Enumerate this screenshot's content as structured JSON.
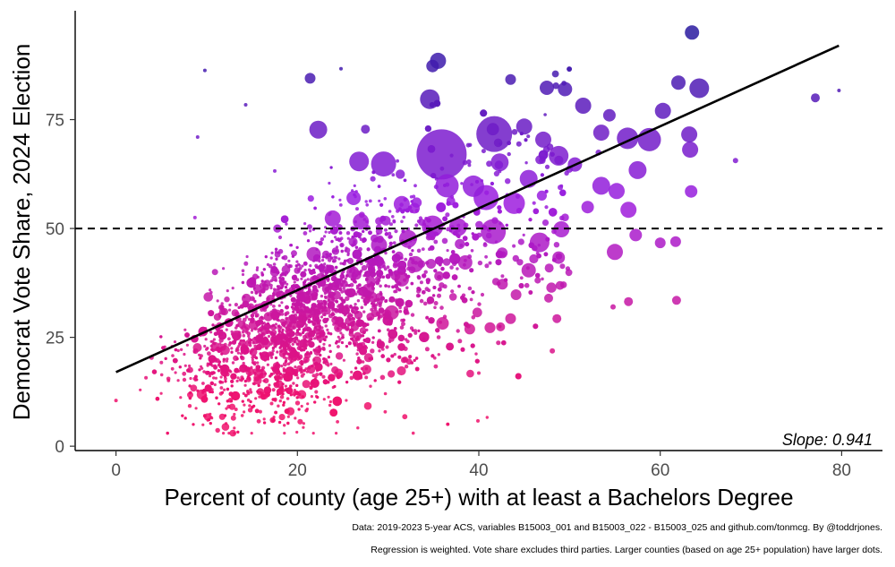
{
  "chart_data": {
    "type": "scatter",
    "title": "",
    "xlabel": "Percent of county (age 25+) with at least a Bachelors Degree",
    "ylabel": "Democrat Vote Share, 2024 Election",
    "xlim": [
      -4.5,
      84.5
    ],
    "ylim": [
      -1,
      100
    ],
    "x_ticks": [
      0,
      20,
      40,
      60,
      80
    ],
    "y_ticks": [
      0,
      25,
      50,
      75
    ],
    "grid": false,
    "reference_line": {
      "type": "horizontal",
      "y": 50,
      "style": "dashed"
    },
    "regression_line": {
      "x": [
        0,
        79.7
      ],
      "y": [
        17,
        92
      ],
      "slope_label": "Slope: 0.941"
    },
    "color_scale": {
      "low": "#f0106b",
      "mid": "#9b1de0",
      "high": "#2a1aa0"
    },
    "point_cloud_description_free_points": {
      "count": 3100,
      "note_values": []
    },
    "highlighted_points": [
      {
        "x": 63.5,
        "y": 95.0,
        "size": 8
      },
      {
        "x": 35.5,
        "y": 88.5,
        "size": 9
      },
      {
        "x": 34.9,
        "y": 87.3,
        "size": 7
      },
      {
        "x": 21.4,
        "y": 84.5,
        "size": 6
      },
      {
        "x": 9.8,
        "y": 86.3,
        "size": 2
      },
      {
        "x": 24.8,
        "y": 86.7,
        "size": 2
      },
      {
        "x": 43.5,
        "y": 84.2,
        "size": 6
      },
      {
        "x": 47.5,
        "y": 82.3,
        "size": 8
      },
      {
        "x": 49.5,
        "y": 82.0,
        "size": 8
      },
      {
        "x": 62.0,
        "y": 83.5,
        "size": 8
      },
      {
        "x": 64.3,
        "y": 82.2,
        "size": 11
      },
      {
        "x": 34.6,
        "y": 79.7,
        "size": 11
      },
      {
        "x": 77.1,
        "y": 80.0,
        "size": 5
      },
      {
        "x": 79.7,
        "y": 81.7,
        "size": 2
      },
      {
        "x": 51.5,
        "y": 78.2,
        "size": 9
      },
      {
        "x": 54.4,
        "y": 76.0,
        "size": 7
      },
      {
        "x": 60.3,
        "y": 77.0,
        "size": 9
      },
      {
        "x": 41.7,
        "y": 71.7,
        "size": 20
      },
      {
        "x": 27.5,
        "y": 72.8,
        "size": 5
      },
      {
        "x": 22.3,
        "y": 72.7,
        "size": 10
      },
      {
        "x": 35.9,
        "y": 67.0,
        "size": 28
      },
      {
        "x": 29.5,
        "y": 64.8,
        "size": 14
      },
      {
        "x": 26.8,
        "y": 65.4,
        "size": 11
      },
      {
        "x": 48.8,
        "y": 66.7,
        "size": 11
      },
      {
        "x": 58.8,
        "y": 70.4,
        "size": 13
      },
      {
        "x": 63.3,
        "y": 68.1,
        "size": 9
      },
      {
        "x": 56.4,
        "y": 70.7,
        "size": 12
      },
      {
        "x": 53.5,
        "y": 72.0,
        "size": 9
      },
      {
        "x": 63.2,
        "y": 71.6,
        "size": 9
      },
      {
        "x": 68.3,
        "y": 65.6,
        "size": 3
      },
      {
        "x": 57.5,
        "y": 63.4,
        "size": 10
      },
      {
        "x": 53.5,
        "y": 59.8,
        "size": 10
      },
      {
        "x": 55.2,
        "y": 58.6,
        "size": 9
      },
      {
        "x": 63.4,
        "y": 58.5,
        "size": 7
      },
      {
        "x": 56.5,
        "y": 54.3,
        "size": 9
      },
      {
        "x": 52.0,
        "y": 54.9,
        "size": 7
      },
      {
        "x": 40.8,
        "y": 57.1,
        "size": 14
      },
      {
        "x": 36.5,
        "y": 59.8,
        "size": 13
      },
      {
        "x": 39.4,
        "y": 59.7,
        "size": 12
      },
      {
        "x": 43.9,
        "y": 55.8,
        "size": 12
      },
      {
        "x": 45.5,
        "y": 61.4,
        "size": 10
      },
      {
        "x": 31.5,
        "y": 55.6,
        "size": 9
      },
      {
        "x": 26.2,
        "y": 57.0,
        "size": 8
      },
      {
        "x": 23.9,
        "y": 52.3,
        "size": 9
      },
      {
        "x": 27.0,
        "y": 51.6,
        "size": 9
      },
      {
        "x": 34.9,
        "y": 50.5,
        "size": 12
      },
      {
        "x": 37.7,
        "y": 50.3,
        "size": 10
      },
      {
        "x": 41.6,
        "y": 49.3,
        "size": 14
      },
      {
        "x": 46.7,
        "y": 46.8,
        "size": 11
      },
      {
        "x": 49.1,
        "y": 49.8,
        "size": 9
      },
      {
        "x": 55.0,
        "y": 44.6,
        "size": 9
      },
      {
        "x": 57.3,
        "y": 48.5,
        "size": 7
      },
      {
        "x": 60.0,
        "y": 46.7,
        "size": 6
      },
      {
        "x": 61.7,
        "y": 47.0,
        "size": 6
      },
      {
        "x": 48.8,
        "y": 43.3,
        "size": 7
      },
      {
        "x": 45.5,
        "y": 40.4,
        "size": 8
      },
      {
        "x": 42.6,
        "y": 37.2,
        "size": 6
      },
      {
        "x": 38.5,
        "y": 42.2,
        "size": 8
      },
      {
        "x": 47.7,
        "y": 34.0,
        "size": 5
      },
      {
        "x": 56.5,
        "y": 33.2,
        "size": 5
      },
      {
        "x": 61.8,
        "y": 33.5,
        "size": 5
      },
      {
        "x": 44.1,
        "y": 34.8,
        "size": 6
      },
      {
        "x": 54.8,
        "y": 32.0,
        "size": 3
      },
      {
        "x": 48.6,
        "y": 29.3,
        "size": 5
      },
      {
        "x": 43.5,
        "y": 29.3,
        "size": 6
      },
      {
        "x": 42.4,
        "y": 27.4,
        "size": 5
      },
      {
        "x": 39.0,
        "y": 26.9,
        "size": 6
      },
      {
        "x": 36.0,
        "y": 28.2,
        "size": 7
      },
      {
        "x": 48.1,
        "y": 21.9,
        "size": 3
      },
      {
        "x": 40.0,
        "y": 16.8,
        "size": 2
      },
      {
        "x": 39.9,
        "y": 5.8,
        "size": 2
      },
      {
        "x": 0.0,
        "y": 10.5,
        "size": 2
      },
      {
        "x": 5.0,
        "y": 19.2,
        "size": 2
      },
      {
        "x": 3.3,
        "y": 15.7,
        "size": 2
      },
      {
        "x": 8.7,
        "y": 52.5,
        "size": 2
      },
      {
        "x": 9.0,
        "y": 71.0,
        "size": 2
      },
      {
        "x": 17.5,
        "y": 63.2,
        "size": 2
      },
      {
        "x": 14.3,
        "y": 78.4,
        "size": 2
      },
      {
        "x": 21.8,
        "y": 44.1,
        "size": 8
      },
      {
        "x": 27.8,
        "y": 35.9,
        "size": 7
      },
      {
        "x": 30.4,
        "y": 30.7,
        "size": 8
      },
      {
        "x": 31.5,
        "y": 38.3,
        "size": 8
      },
      {
        "x": 26.1,
        "y": 39.9,
        "size": 7
      },
      {
        "x": 33.0,
        "y": 41.8,
        "size": 9
      },
      {
        "x": 45.0,
        "y": 73.4,
        "size": 9
      },
      {
        "x": 47.1,
        "y": 70.4,
        "size": 9
      },
      {
        "x": 50.6,
        "y": 64.7,
        "size": 8
      },
      {
        "x": 42.3,
        "y": 65.2,
        "size": 10
      },
      {
        "x": 32.2,
        "y": 47.6,
        "size": 10
      },
      {
        "x": 29.0,
        "y": 46.2,
        "size": 9
      }
    ]
  },
  "annotation": {
    "slope_text": "Slope: 0.941"
  },
  "captions": {
    "line1": "Data: 2019-2023 5-year ACS, variables B15003_001 and B15003_022 - B15003_025 and github.com/tonmcg. By @toddrjones.",
    "line2": "Regression is weighted. Vote share excludes third parties. Larger counties (based on age 25+ population) have larger dots."
  }
}
